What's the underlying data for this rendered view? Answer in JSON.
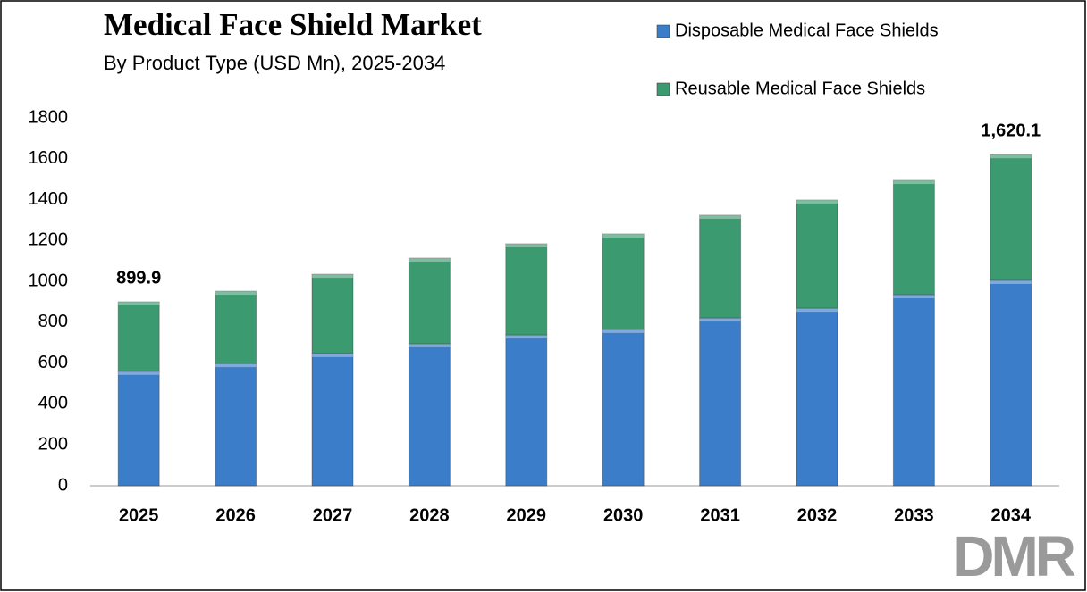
{
  "chart_data": {
    "type": "stacked-bar",
    "title": "Medical Face Shield Market",
    "subtitle": "By Product Type (USD Mn), 2025-2034",
    "categories": [
      "2025",
      "2026",
      "2027",
      "2028",
      "2029",
      "2030",
      "2031",
      "2032",
      "2033",
      "2034"
    ],
    "series": [
      {
        "name": "Disposable Medical Face Shields",
        "color": "#3b7dc9",
        "values": [
          560,
          598,
          647,
          695,
          738,
          765,
          821,
          869,
          935,
          1005
        ]
      },
      {
        "name": "Reusable Medical Face Shields",
        "color": "#3b9a6f",
        "values": [
          339.9,
          354,
          388,
          419,
          446,
          467,
          503,
          529,
          559,
          615.1
        ]
      }
    ],
    "total_labels": [
      {
        "value": 899.9,
        "label": "899.9"
      },
      null,
      null,
      null,
      null,
      null,
      null,
      null,
      null,
      {
        "value": 1620.1,
        "label": "1,620.1"
      }
    ],
    "ylim": [
      0,
      1800
    ],
    "yticks": [
      0,
      200,
      400,
      600,
      800,
      1000,
      1200,
      1400,
      1600,
      1800
    ],
    "grid": false,
    "legend": "top-right"
  },
  "logo": "DMR"
}
